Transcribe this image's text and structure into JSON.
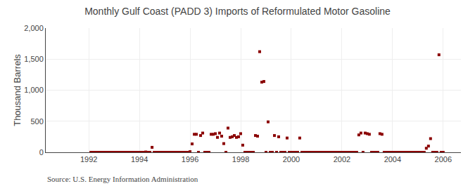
{
  "chart_data": {
    "type": "scatter",
    "title": "Monthly Gulf Coast (PADD 3) Imports of Reformulated Motor Gasoline",
    "ylabel": "Thousand Barrels",
    "annotations": [
      {
        "text": "Source: U.S. Energy Information Administration"
      }
    ],
    "color": "#8B0000",
    "marker": "square",
    "grid": true,
    "xlim": [
      1990.3,
      2006.7
    ],
    "xticks": [
      1992,
      1994,
      1996,
      1998,
      2000,
      2002,
      2004,
      2006
    ],
    "ylim": [
      0,
      2000
    ],
    "yticks": [
      0,
      500,
      {
        "value": 1000,
        "label": "1,000"
      },
      {
        "value": 1500,
        "label": "1,500"
      },
      {
        "value": 2000,
        "label": "2,000"
      }
    ],
    "x": [
      1992.083,
      1992.167,
      1992.25,
      1992.333,
      1992.417,
      1992.5,
      1992.583,
      1992.667,
      1992.75,
      1992.833,
      1992.917,
      1993.0,
      1993.083,
      1993.167,
      1993.25,
      1993.333,
      1993.417,
      1993.5,
      1993.583,
      1993.667,
      1993.75,
      1993.833,
      1993.917,
      1994.0,
      1994.083,
      1994.167,
      1994.25,
      1994.333,
      1994.417,
      1994.5,
      1994.583,
      1994.667,
      1994.75,
      1994.833,
      1994.917,
      1995.0,
      1995.083,
      1995.167,
      1995.25,
      1995.333,
      1995.417,
      1995.5,
      1995.583,
      1995.667,
      1995.75,
      1995.833,
      1995.917,
      1996.0,
      1996.083,
      1996.167,
      1996.25,
      1996.333,
      1996.417,
      1996.5,
      1996.583,
      1996.667,
      1996.75,
      1996.833,
      1996.917,
      1997.0,
      1997.083,
      1997.167,
      1997.25,
      1997.333,
      1997.417,
      1997.5,
      1997.583,
      1997.667,
      1997.75,
      1997.833,
      1997.917,
      1998.0,
      1998.083,
      1998.167,
      1998.25,
      1998.333,
      1998.417,
      1998.5,
      1998.583,
      1998.667,
      1998.75,
      1998.833,
      1998.917,
      1999.0,
      1999.083,
      1999.167,
      1999.25,
      1999.333,
      1999.417,
      1999.5,
      1999.583,
      1999.667,
      1999.75,
      1999.833,
      1999.917,
      2000.0,
      2000.083,
      2000.167,
      2000.25,
      2000.333,
      2000.417,
      2000.5,
      2000.583,
      2000.667,
      2000.75,
      2000.833,
      2000.917,
      2001.0,
      2001.083,
      2001.167,
      2001.25,
      2001.333,
      2001.417,
      2001.5,
      2001.583,
      2001.667,
      2001.75,
      2001.833,
      2001.917,
      2002.0,
      2002.083,
      2002.167,
      2002.25,
      2002.333,
      2002.417,
      2002.5,
      2002.583,
      2002.667,
      2002.75,
      2002.833,
      2002.917,
      2003.0,
      2003.083,
      2003.167,
      2003.25,
      2003.333,
      2003.417,
      2003.5,
      2003.583,
      2003.667,
      2003.75,
      2003.833,
      2003.917,
      2004.0,
      2004.083,
      2004.167,
      2004.25,
      2004.333,
      2004.417,
      2004.5,
      2004.583,
      2004.667,
      2004.75,
      2004.833,
      2004.917,
      2005.0,
      2005.083,
      2005.167,
      2005.25,
      2005.333,
      2005.417,
      2005.5,
      2005.583,
      2005.667,
      2005.75,
      2005.833,
      2005.917,
      2006.0
    ],
    "values": [
      0,
      0,
      0,
      0,
      0,
      0,
      0,
      0,
      0,
      0,
      0,
      0,
      0,
      0,
      0,
      0,
      0,
      0,
      0,
      0,
      0,
      0,
      0,
      0,
      0,
      0,
      5,
      0,
      0,
      80,
      0,
      0,
      0,
      0,
      0,
      0,
      0,
      0,
      0,
      0,
      0,
      0,
      0,
      0,
      0,
      0,
      0,
      10,
      135,
      290,
      290,
      0,
      270,
      310,
      0,
      0,
      0,
      290,
      290,
      300,
      240,
      310,
      260,
      140,
      0,
      390,
      240,
      250,
      270,
      240,
      250,
      300,
      115,
      0,
      0,
      0,
      0,
      0,
      270,
      260,
      1620,
      1130,
      1140,
      0,
      490,
      0,
      0,
      270,
      0,
      250,
      0,
      0,
      0,
      230,
      0,
      0,
      0,
      0,
      0,
      230,
      0,
      0,
      0,
      0,
      0,
      0,
      0,
      0,
      0,
      0,
      0,
      0,
      0,
      0,
      0,
      0,
      0,
      0,
      0,
      0,
      0,
      0,
      0,
      0,
      0,
      0,
      0,
      280,
      310,
      0,
      310,
      300,
      290,
      0,
      0,
      0,
      0,
      300,
      290,
      0,
      0,
      0,
      0,
      0,
      0,
      0,
      0,
      0,
      0,
      0,
      0,
      0,
      0,
      0,
      0,
      0,
      0,
      0,
      0,
      65,
      100,
      220,
      0,
      0,
      0,
      1570,
      0,
      0
    ]
  }
}
